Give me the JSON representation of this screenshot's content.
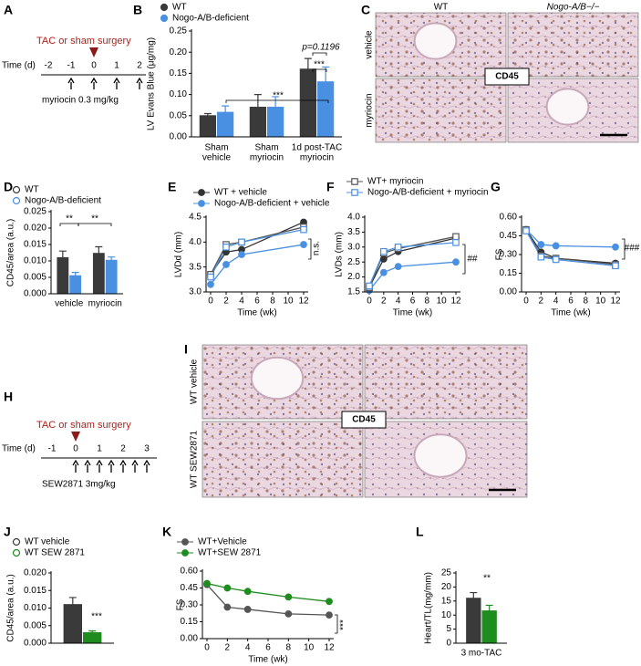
{
  "timelines": [
    {
      "panel": "A",
      "event": "TAC or sham surgery",
      "axis_label": "Time (d)",
      "ticks": [
        -2,
        -1,
        0,
        1,
        2
      ],
      "event_at": 0,
      "doses": [
        -1,
        0,
        1,
        2
      ],
      "dose_label": "myriocin 0.3 mg/kg"
    },
    {
      "panel": "H",
      "event": "TAC or sham surgery",
      "axis_label": "Time (d)",
      "ticks": [
        -1,
        0,
        1,
        2,
        3
      ],
      "event_at": 0,
      "doses": [
        0,
        0.5,
        1,
        1.5,
        2,
        2.5,
        3
      ],
      "dose_label": "SEW2871 3mg/kg"
    }
  ],
  "micrographs": [
    {
      "panel": "C",
      "columns": [
        "WT",
        "Nogo-A/B−/−"
      ],
      "rows": [
        "vehicle",
        "myriocin"
      ],
      "stain": "CD45"
    },
    {
      "panel": "I",
      "rows": [
        "WT vehicle",
        "WT SEW2871"
      ],
      "stain": "CD45"
    }
  ],
  "chart_data": [
    {
      "panel": "B",
      "type": "bar",
      "ylabel": "LV Evans Blue (μg/mg)",
      "legend_marker": "filled",
      "categories": [
        [
          "Sham",
          "vehicle"
        ],
        [
          "Sham",
          "myriocin"
        ],
        [
          "1d post-TAC",
          "myriocin"
        ]
      ],
      "series": [
        {
          "name": "WT",
          "color": "#3a3a3a",
          "values": [
            0.05,
            0.07,
            0.16
          ],
          "errors": [
            0.005,
            0.03,
            0.025
          ]
        },
        {
          "name": "Nogo-A/B-deficient",
          "color": "#4a90e2",
          "values": [
            0.058,
            0.07,
            0.13
          ],
          "errors": [
            0.015,
            0.025,
            0.035
          ]
        }
      ],
      "ylim": [
        0,
        0.25
      ],
      "yticks": [
        {
          "value": 0,
          "label": "0.00"
        },
        0.05,
        {
          "value": 0.1,
          "label": "0.10"
        },
        0.15,
        {
          "value": 0.2,
          "label": "0.20"
        },
        0.25
      ],
      "annotations": [
        "***",
        "***",
        "p=0.1196"
      ]
    },
    {
      "panel": "D",
      "type": "bar",
      "ylabel": "CD45/area (a.u.)",
      "legend_marker": "open",
      "categories": [
        "vehicle",
        "myriocin"
      ],
      "series": [
        {
          "name": "WT",
          "color": "#3a3a3a",
          "values": [
            0.011,
            0.0123
          ],
          "errors": [
            0.002,
            0.002
          ]
        },
        {
          "name": "Nogo-A/B-deficient",
          "color": "#4a90e2",
          "values": [
            0.0055,
            0.0102
          ],
          "errors": [
            0.001,
            0.001
          ]
        }
      ],
      "ylim": [
        0,
        0.025
      ],
      "yticks": [
        {
          "value": 0,
          "label": "0.000"
        },
        0.005,
        {
          "value": 0.01,
          "label": "0.010"
        },
        0.015,
        {
          "value": 0.02,
          "label": "0.020"
        },
        0.025
      ],
      "annotations": [
        "**",
        "**"
      ]
    },
    {
      "panel": "E",
      "type": "line",
      "ylabel": "LVDd (mm)",
      "xlabel": "Time (wk)",
      "x": [
        0,
        2,
        4,
        12
      ],
      "series": [
        {
          "name": "WT + vehicle",
          "color": "#333333",
          "marker": "circle",
          "filled": true,
          "values": [
            3.35,
            3.8,
            3.85,
            4.4
          ]
        },
        {
          "name": "Nogo-A/B-deficient + vehicle",
          "color": "#4a90e2",
          "marker": "circle",
          "filled": true,
          "values": [
            3.15,
            3.55,
            3.75,
            3.95
          ]
        },
        {
          "color": "#555555",
          "marker": "square",
          "filled": false,
          "values": [
            3.35,
            3.95,
            4.0,
            4.3
          ]
        },
        {
          "color": "#4a90e2",
          "marker": "square",
          "filled": false,
          "values": [
            3.3,
            3.9,
            4.0,
            4.25
          ]
        }
      ],
      "xlim": [
        0,
        12
      ],
      "xticks": [
        0,
        2,
        4,
        6,
        8,
        10,
        12
      ],
      "ylim": [
        3,
        4.5
      ],
      "yticks": [
        {
          "value": 3,
          "label": "3.0"
        },
        3.5,
        {
          "value": 4,
          "label": "4.0"
        },
        4.5
      ],
      "annotations": [
        "n.s."
      ]
    },
    {
      "panel": "F",
      "type": "line",
      "ylabel": "LVDs (mm)",
      "xlabel": "Time (wk)",
      "x": [
        0,
        2,
        4,
        12
      ],
      "series": [
        {
          "color": "#333333",
          "marker": "circle",
          "filled": true,
          "values": [
            1.65,
            2.6,
            2.85,
            3.3
          ]
        },
        {
          "color": "#4a90e2",
          "marker": "circle",
          "filled": true,
          "values": [
            1.55,
            2.15,
            2.35,
            2.5
          ]
        },
        {
          "name": "WT+ myriocin",
          "color": "#555555",
          "marker": "square",
          "filled": false,
          "values": [
            1.65,
            2.8,
            2.95,
            3.35
          ]
        },
        {
          "name": "Nogo-A/B-deficient + myriocin",
          "color": "#4a90e2",
          "marker": "square",
          "filled": false,
          "values": [
            1.7,
            2.85,
            3.0,
            3.15
          ]
        }
      ],
      "xlim": [
        0,
        12
      ],
      "xticks": [
        0,
        2,
        4,
        6,
        8,
        10,
        12
      ],
      "ylim": [
        1.5,
        4
      ],
      "yticks": [
        1.5,
        {
          "value": 2,
          "label": "2.0"
        },
        2.5,
        {
          "value": 3,
          "label": "3.0"
        },
        3.5,
        {
          "value": 4,
          "label": "4.0"
        }
      ],
      "annotations": [
        "##"
      ]
    },
    {
      "panel": "G",
      "type": "line",
      "ylabel": "FS",
      "xlabel": "Time (wk)",
      "x": [
        0,
        2,
        4,
        12
      ],
      "series": [
        {
          "color": "#333333",
          "marker": "circle",
          "filled": true,
          "values": [
            0.5,
            0.32,
            0.27,
            0.23
          ]
        },
        {
          "color": "#4a90e2",
          "marker": "circle",
          "filled": true,
          "values": [
            0.5,
            0.38,
            0.37,
            0.36
          ]
        },
        {
          "color": "#555555",
          "marker": "square",
          "filled": false,
          "values": [
            0.5,
            0.29,
            0.27,
            0.22
          ]
        },
        {
          "color": "#4a90e2",
          "marker": "square",
          "filled": false,
          "values": [
            0.49,
            0.28,
            0.26,
            0.21
          ]
        }
      ],
      "xlim": [
        0,
        12
      ],
      "xticks": [
        0,
        2,
        4,
        6,
        8,
        10,
        12
      ],
      "ylim": [
        0,
        0.6
      ],
      "yticks": [
        {
          "value": 0,
          "label": "0.00"
        },
        0.15,
        {
          "value": 0.3,
          "label": "0.30"
        },
        0.45,
        {
          "value": 0.6,
          "label": "0.60"
        }
      ],
      "annotations": [
        "###"
      ]
    },
    {
      "panel": "J",
      "type": "bar",
      "ylabel": "CD45/area (a.u.)",
      "legend_marker": "open",
      "series": [
        {
          "name": "WT vehicle",
          "color": "#3a3a3a",
          "values": [
            0.011
          ],
          "errors": [
            0.002
          ]
        },
        {
          "name": "WT SEW 2871",
          "color": "#1e8c1e",
          "values": [
            0.003
          ],
          "errors": [
            0.0005
          ]
        }
      ],
      "ylim": [
        0,
        0.02
      ],
      "yticks": [
        {
          "value": 0,
          "label": "0.000"
        },
        0.005,
        {
          "value": 0.01,
          "label": "0.010"
        },
        0.015,
        {
          "value": 0.02,
          "label": "0.020"
        }
      ],
      "annotations": [
        "***"
      ]
    },
    {
      "panel": "K",
      "type": "line",
      "ylabel": "FS",
      "xlabel": "Time (wk)",
      "x": [
        0,
        2,
        4,
        8,
        12
      ],
      "series": [
        {
          "name": "WT+Vehicle",
          "color": "#555555",
          "marker": "circle",
          "filled": true,
          "values": [
            0.48,
            0.28,
            0.26,
            0.22,
            0.21
          ]
        },
        {
          "name": "WT+SEW 2871",
          "color": "#1e8c1e",
          "marker": "circle",
          "filled": true,
          "values": [
            0.49,
            0.45,
            0.42,
            0.37,
            0.33
          ]
        }
      ],
      "xlim": [
        0,
        12
      ],
      "xticks": [
        0,
        2,
        4,
        6,
        8,
        10,
        12
      ],
      "ylim": [
        0,
        0.6
      ],
      "yticks": [
        {
          "value": 0,
          "label": "0.00"
        },
        0.15,
        {
          "value": 0.3,
          "label": "0.30"
        },
        0.45,
        {
          "value": 0.6,
          "label": "0.60"
        }
      ],
      "annotations": [
        "***"
      ]
    },
    {
      "panel": "L",
      "type": "bar",
      "ylabel": "Heart/TL(mg/mm)",
      "categories": [
        "3 mo-TAC"
      ],
      "series": [
        {
          "color": "#3a3a3a",
          "values": [
            16
          ],
          "errors": [
            2
          ]
        },
        {
          "color": "#1e8c1e",
          "values": [
            11.5
          ],
          "errors": [
            2
          ]
        }
      ],
      "ylim": [
        0,
        25
      ],
      "yticks": [
        0,
        5,
        10,
        15,
        20,
        25
      ],
      "annotations": [
        "**"
      ]
    }
  ]
}
